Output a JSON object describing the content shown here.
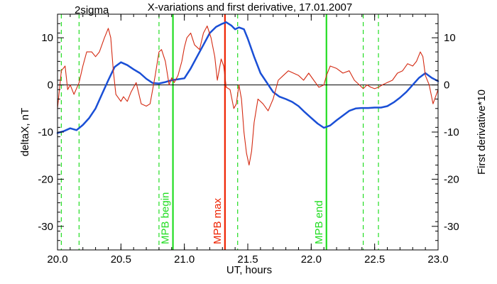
{
  "chart_data": {
    "type": "line",
    "title": "X-variations and first derivative, 17.01.2007",
    "corner_label": "2sigma",
    "xlabel": "UT, hours",
    "ylabel_left": "deltaX, nT",
    "ylabel_right": "First derivative*10",
    "xlim": [
      20.0,
      23.0
    ],
    "ylim": [
      -35,
      15
    ],
    "x_ticks": [
      "20.0",
      "20.5",
      "21.0",
      "21.5",
      "22.0",
      "22.5",
      "23.0"
    ],
    "x_tick_values": [
      20.0,
      20.5,
      21.0,
      21.5,
      22.0,
      22.5,
      23.0
    ],
    "y_ticks": [
      "10",
      "0",
      "-10",
      "-20",
      "-30"
    ],
    "y_tick_values": [
      10,
      0,
      -10,
      -20,
      -30
    ],
    "colors": {
      "deltaX": "#1a4fd6",
      "derivative": "#d42a12",
      "green": "#22dd22",
      "red_marker": "#ee2200",
      "ylabel_left": "#1a4fd6",
      "ylabel_right": "#d42a12"
    },
    "series": [
      {
        "key": "deltaX",
        "color": "#1a4fd6",
        "x": [
          20.0,
          20.05,
          20.1,
          20.15,
          20.2,
          20.25,
          20.3,
          20.35,
          20.4,
          20.45,
          20.5,
          20.55,
          20.6,
          20.65,
          20.7,
          20.75,
          20.8,
          20.85,
          20.9,
          20.95,
          21.0,
          21.05,
          21.1,
          21.15,
          21.2,
          21.25,
          21.3,
          21.33,
          21.37,
          21.4,
          21.43,
          21.47,
          21.5,
          21.55,
          21.6,
          21.65,
          21.7,
          21.75,
          21.8,
          21.85,
          21.9,
          21.95,
          22.0,
          22.05,
          22.1,
          22.15,
          22.2,
          22.25,
          22.3,
          22.35,
          22.4,
          22.45,
          22.5,
          22.55,
          22.6,
          22.65,
          22.7,
          22.75,
          22.8,
          22.85,
          22.9,
          22.95,
          23.0
        ],
        "y": [
          -10.2,
          -9.8,
          -9.2,
          -9.6,
          -8.5,
          -7.0,
          -5.0,
          -2.0,
          1.0,
          3.8,
          4.8,
          4.2,
          3.3,
          2.5,
          1.3,
          0.4,
          0.3,
          0.6,
          1.0,
          1.2,
          1.4,
          3.5,
          6.0,
          8.5,
          11.0,
          12.3,
          13.0,
          13.3,
          12.6,
          11.8,
          12.2,
          11.8,
          9.8,
          6.0,
          2.5,
          0.5,
          -1.5,
          -2.5,
          -3.0,
          -3.6,
          -4.5,
          -5.8,
          -7.0,
          -8.2,
          -9.1,
          -8.6,
          -7.5,
          -6.5,
          -5.5,
          -5.0,
          -4.9,
          -4.9,
          -4.8,
          -4.8,
          -4.5,
          -3.7,
          -2.7,
          -1.5,
          0.0,
          1.5,
          2.5,
          1.5,
          0.8
        ]
      },
      {
        "key": "derivative",
        "color": "#d42a12",
        "x": [
          20.0,
          20.03,
          20.06,
          20.08,
          20.1,
          20.13,
          20.17,
          20.2,
          20.23,
          20.27,
          20.3,
          20.33,
          20.37,
          20.4,
          20.42,
          20.44,
          20.46,
          20.5,
          20.52,
          20.55,
          20.58,
          20.62,
          20.66,
          20.7,
          20.73,
          20.77,
          20.8,
          20.82,
          20.85,
          20.88,
          20.9,
          20.92,
          20.95,
          20.98,
          21.0,
          21.02,
          21.05,
          21.08,
          21.12,
          21.15,
          21.18,
          21.21,
          21.24,
          21.26,
          21.29,
          21.31,
          21.33,
          21.36,
          21.39,
          21.41,
          21.43,
          21.45,
          21.47,
          21.49,
          21.51,
          21.53,
          21.55,
          21.58,
          21.62,
          21.66,
          21.7,
          21.74,
          21.78,
          21.82,
          21.86,
          21.9,
          21.94,
          21.98,
          22.02,
          22.06,
          22.1,
          22.12,
          22.15,
          22.2,
          22.25,
          22.3,
          22.34,
          22.38,
          22.41,
          22.44,
          22.47,
          22.5,
          22.53,
          22.56,
          22.6,
          22.64,
          22.68,
          22.72,
          22.76,
          22.8,
          22.83,
          22.86,
          22.88,
          22.9,
          22.93,
          22.96,
          23.0
        ],
        "y": [
          -5.0,
          3.0,
          4.0,
          -1.0,
          0.0,
          -2.0,
          0.5,
          4.0,
          7.0,
          7.0,
          6.0,
          7.0,
          10.0,
          12.0,
          10.0,
          3.0,
          -2.0,
          -3.5,
          -2.5,
          -3.5,
          -1.5,
          0.5,
          -4.0,
          -4.5,
          -4.0,
          2.0,
          7.0,
          7.5,
          5.0,
          0.0,
          1.5,
          0.5,
          2.0,
          5.0,
          8.0,
          10.0,
          11.0,
          8.5,
          7.5,
          11.0,
          12.5,
          10.0,
          6.0,
          1.0,
          5.5,
          4.0,
          -0.5,
          -1.0,
          -5.0,
          -4.0,
          0.0,
          -3.0,
          -10.0,
          -14.5,
          -17.0,
          -14.0,
          -8.0,
          -3.0,
          -4.0,
          -5.5,
          -3.0,
          1.0,
          2.0,
          3.0,
          2.5,
          2.0,
          1.0,
          2.5,
          1.0,
          -0.5,
          0.0,
          2.0,
          4.0,
          3.5,
          2.5,
          3.0,
          1.0,
          0.0,
          -0.8,
          0.0,
          -0.5,
          -0.8,
          -0.5,
          0.0,
          0.5,
          1.0,
          2.5,
          3.0,
          4.5,
          4.0,
          5.0,
          7.0,
          6.0,
          2.0,
          0.0,
          -4.0,
          -1.0
        ]
      }
    ],
    "vertical_lines": [
      {
        "key": "dash_1",
        "x": 20.03,
        "color": "#22dd22",
        "style": "dashed",
        "label": ""
      },
      {
        "key": "dash_2",
        "x": 20.17,
        "color": "#22dd22",
        "style": "dashed",
        "label": ""
      },
      {
        "key": "dash_3",
        "x": 20.8,
        "color": "#22dd22",
        "style": "dashed",
        "label": ""
      },
      {
        "key": "mpb_begin",
        "x": 20.91,
        "color": "#22dd22",
        "style": "solid",
        "label": "MPB begin"
      },
      {
        "key": "mpb_max",
        "x": 21.32,
        "color": "#ee2200",
        "style": "solid",
        "label": "MPB max"
      },
      {
        "key": "dash_4",
        "x": 21.42,
        "color": "#22dd22",
        "style": "dashed",
        "label": ""
      },
      {
        "key": "mpb_end",
        "x": 22.12,
        "color": "#22dd22",
        "style": "solid",
        "label": "MPB end"
      },
      {
        "key": "dash_5",
        "x": 22.41,
        "color": "#22dd22",
        "style": "dashed",
        "label": ""
      },
      {
        "key": "dash_6",
        "x": 22.53,
        "color": "#22dd22",
        "style": "dashed",
        "label": ""
      }
    ],
    "zero_line": 0,
    "grid": false,
    "legend": "none"
  }
}
